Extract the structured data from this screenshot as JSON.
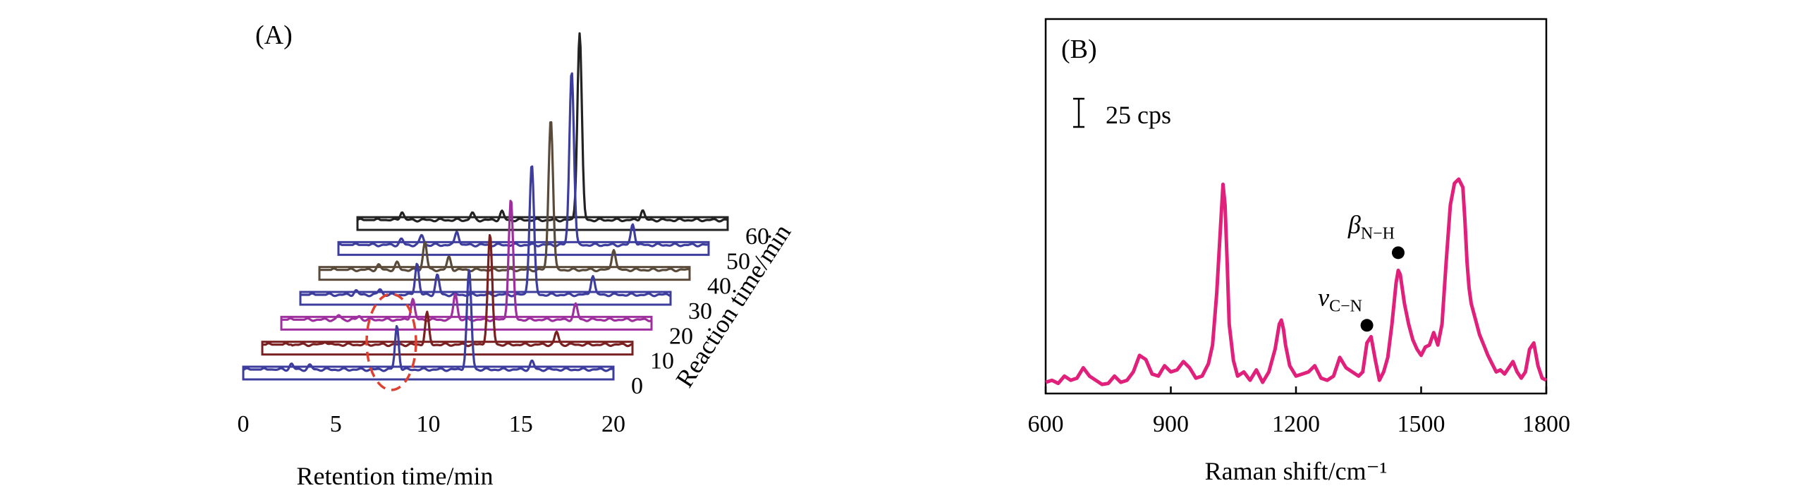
{
  "chart_data": [
    {
      "panel_label": "(A)",
      "type": "line",
      "subtype": "waterfall-3d-chromatogram",
      "xlabel": "Retention time/min",
      "zlabel": "Reaction time/min",
      "x_ticks": [
        "0",
        "5",
        "10",
        "15",
        "20"
      ],
      "z_ticks": [
        "0",
        "10",
        "20",
        "30",
        "40",
        "50",
        "60"
      ],
      "xlim": [
        0,
        20
      ],
      "zlim": [
        0,
        60
      ],
      "series": [
        {
          "reaction_time": 0,
          "color": "#3d3d9e",
          "peaks": [
            [
              2.6,
              8
            ],
            [
              3.6,
              6
            ],
            [
              8.3,
              62
            ],
            [
              12.2,
              140
            ],
            [
              15.6,
              12
            ]
          ]
        },
        {
          "reaction_time": 10,
          "color": "#7a2020",
          "peaks": [
            [
              3.4,
              5
            ],
            [
              8.9,
              45
            ],
            [
              12.3,
              155
            ],
            [
              15.9,
              18
            ]
          ]
        },
        {
          "reaction_time": 20,
          "color": "#9e2f9e",
          "peaks": [
            [
              3.1,
              6
            ],
            [
              4.2,
              5
            ],
            [
              7.1,
              30
            ],
            [
              9.4,
              38
            ],
            [
              12.4,
              170
            ],
            [
              15.9,
              22
            ]
          ]
        },
        {
          "reaction_time": 30,
          "color": "#3d3d9e",
          "peaks": [
            [
              3.0,
              6
            ],
            [
              4.3,
              8
            ],
            [
              6.3,
              45
            ],
            [
              7.4,
              28
            ],
            [
              12.5,
              185
            ],
            [
              15.8,
              28
            ]
          ]
        },
        {
          "reaction_time": 40,
          "color": "#5a4a3a",
          "peaks": [
            [
              3.2,
              7
            ],
            [
              4.2,
              10
            ],
            [
              5.7,
              40
            ],
            [
              7.0,
              18
            ],
            [
              12.5,
              215
            ],
            [
              15.9,
              30
            ]
          ]
        },
        {
          "reaction_time": 50,
          "color": "#3d3d9e",
          "peaks": [
            [
              3.4,
              8
            ],
            [
              4.5,
              14
            ],
            [
              6.4,
              20
            ],
            [
              12.6,
              248
            ],
            [
              15.9,
              30
            ]
          ]
        },
        {
          "reaction_time": 60,
          "color": "#222222",
          "peaks": [
            [
              2.4,
              12
            ],
            [
              6.2,
              10
            ],
            [
              7.8,
              12
            ],
            [
              12.0,
              265
            ],
            [
              15.4,
              14
            ]
          ]
        }
      ]
    },
    {
      "panel_label": "(B)",
      "type": "line",
      "xlabel": "Raman shift/cm⁻¹",
      "x_ticks": [
        "600",
        "900",
        "1200",
        "1500",
        "1800"
      ],
      "xlim": [
        600,
        1800
      ],
      "scale_bar_label": "25 cps",
      "color": "#e0207a",
      "annotations": [
        {
          "base": "v",
          "sub": "C−N",
          "x": 1370
        },
        {
          "base": "β",
          "sub": "N−H",
          "x": 1445
        }
      ],
      "x": [
        600,
        615,
        630,
        645,
        660,
        675,
        690,
        705,
        720,
        735,
        750,
        765,
        780,
        795,
        810,
        825,
        840,
        855,
        870,
        885,
        900,
        915,
        930,
        945,
        960,
        975,
        990,
        1000,
        1010,
        1020,
        1025,
        1030,
        1035,
        1040,
        1050,
        1060,
        1075,
        1090,
        1105,
        1120,
        1135,
        1150,
        1160,
        1165,
        1170,
        1175,
        1185,
        1200,
        1215,
        1230,
        1245,
        1260,
        1275,
        1290,
        1305,
        1320,
        1335,
        1350,
        1360,
        1370,
        1380,
        1390,
        1400,
        1410,
        1420,
        1430,
        1440,
        1445,
        1450,
        1460,
        1470,
        1480,
        1490,
        1500,
        1510,
        1520,
        1530,
        1540,
        1550,
        1560,
        1570,
        1580,
        1590,
        1600,
        1605,
        1610,
        1615,
        1620,
        1630,
        1640,
        1650,
        1660,
        1670,
        1680,
        1690,
        1700,
        1710,
        1720,
        1730,
        1740,
        1750,
        1760,
        1770,
        1780,
        1790,
        1800
      ],
      "y": [
        4,
        6,
        3,
        10,
        6,
        8,
        18,
        10,
        6,
        2,
        3,
        10,
        4,
        6,
        14,
        30,
        26,
        12,
        10,
        20,
        14,
        16,
        24,
        18,
        8,
        10,
        22,
        40,
        90,
        160,
        195,
        175,
        120,
        60,
        25,
        10,
        14,
        6,
        16,
        4,
        14,
        36,
        60,
        64,
        55,
        40,
        20,
        10,
        12,
        14,
        20,
        8,
        6,
        10,
        28,
        18,
        14,
        10,
        14,
        42,
        48,
        26,
        6,
        14,
        28,
        60,
        100,
        112,
        108,
        80,
        60,
        45,
        36,
        30,
        38,
        40,
        52,
        40,
        60,
        120,
        175,
        196,
        200,
        192,
        160,
        120,
        95,
        80,
        65,
        50,
        40,
        30,
        22,
        14,
        16,
        12,
        18,
        24,
        14,
        8,
        14,
        36,
        42,
        20,
        8,
        6
      ]
    }
  ]
}
